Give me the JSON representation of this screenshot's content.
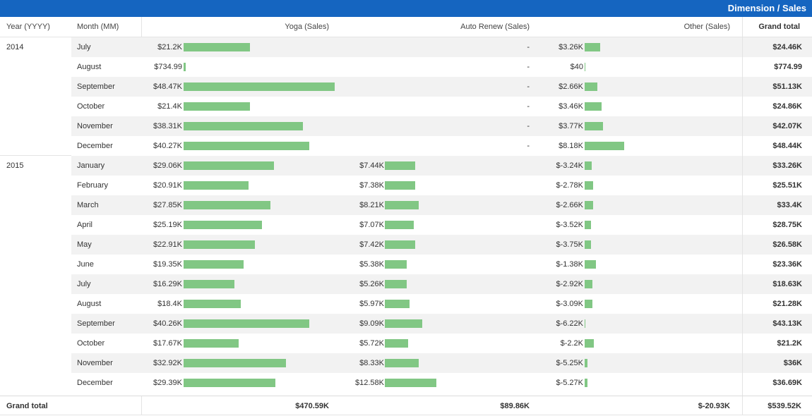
{
  "title": "Dimension / Sales",
  "columns": {
    "year": "Year (YYYY)",
    "month": "Month (MM)",
    "yoga": "Yoga (Sales)",
    "auto": "Auto Renew (Sales)",
    "other": "Other (Sales)",
    "total": "Grand total"
  },
  "rows": [
    {
      "year": "2014",
      "month": "July",
      "yoga": "$21.2K",
      "yoga_v": 21.2,
      "auto": "-",
      "auto_v": 0,
      "other": "$3.26K",
      "other_v": 3.26,
      "total": "$24.46K"
    },
    {
      "year": "",
      "month": "August",
      "yoga": "$734.99",
      "yoga_v": 0.735,
      "auto": "-",
      "auto_v": 0,
      "other": "$40",
      "other_v": 0.04,
      "total": "$774.99"
    },
    {
      "year": "",
      "month": "September",
      "yoga": "$48.47K",
      "yoga_v": 48.47,
      "auto": "-",
      "auto_v": 0,
      "other": "$2.66K",
      "other_v": 2.66,
      "total": "$51.13K"
    },
    {
      "year": "",
      "month": "October",
      "yoga": "$21.4K",
      "yoga_v": 21.4,
      "auto": "-",
      "auto_v": 0,
      "other": "$3.46K",
      "other_v": 3.46,
      "total": "$24.86K"
    },
    {
      "year": "",
      "month": "November",
      "yoga": "$38.31K",
      "yoga_v": 38.31,
      "auto": "-",
      "auto_v": 0,
      "other": "$3.77K",
      "other_v": 3.77,
      "total": "$42.07K"
    },
    {
      "year": "",
      "month": "December",
      "yoga": "$40.27K",
      "yoga_v": 40.27,
      "auto": "-",
      "auto_v": 0,
      "other": "$8.18K",
      "other_v": 8.18,
      "total": "$48.44K"
    },
    {
      "year": "2015",
      "month": "January",
      "yoga": "$29.06K",
      "yoga_v": 29.06,
      "auto": "$7.44K",
      "auto_v": 7.44,
      "other": "$-3.24K",
      "other_v": -3.24,
      "total": "$33.26K"
    },
    {
      "year": "",
      "month": "February",
      "yoga": "$20.91K",
      "yoga_v": 20.91,
      "auto": "$7.38K",
      "auto_v": 7.38,
      "other": "$-2.78K",
      "other_v": -2.78,
      "total": "$25.51K"
    },
    {
      "year": "",
      "month": "March",
      "yoga": "$27.85K",
      "yoga_v": 27.85,
      "auto": "$8.21K",
      "auto_v": 8.21,
      "other": "$-2.66K",
      "other_v": -2.66,
      "total": "$33.4K"
    },
    {
      "year": "",
      "month": "April",
      "yoga": "$25.19K",
      "yoga_v": 25.19,
      "auto": "$7.07K",
      "auto_v": 7.07,
      "other": "$-3.52K",
      "other_v": -3.52,
      "total": "$28.75K"
    },
    {
      "year": "",
      "month": "May",
      "yoga": "$22.91K",
      "yoga_v": 22.91,
      "auto": "$7.42K",
      "auto_v": 7.42,
      "other": "$-3.75K",
      "other_v": -3.75,
      "total": "$26.58K"
    },
    {
      "year": "",
      "month": "June",
      "yoga": "$19.35K",
      "yoga_v": 19.35,
      "auto": "$5.38K",
      "auto_v": 5.38,
      "other": "$-1.38K",
      "other_v": -1.38,
      "total": "$23.36K"
    },
    {
      "year": "",
      "month": "July",
      "yoga": "$16.29K",
      "yoga_v": 16.29,
      "auto": "$5.26K",
      "auto_v": 5.26,
      "other": "$-2.92K",
      "other_v": -2.92,
      "total": "$18.63K"
    },
    {
      "year": "",
      "month": "August",
      "yoga": "$18.4K",
      "yoga_v": 18.4,
      "auto": "$5.97K",
      "auto_v": 5.97,
      "other": "$-3.09K",
      "other_v": -3.09,
      "total": "$21.28K"
    },
    {
      "year": "",
      "month": "September",
      "yoga": "$40.26K",
      "yoga_v": 40.26,
      "auto": "$9.09K",
      "auto_v": 9.09,
      "other": "$-6.22K",
      "other_v": -6.22,
      "total": "$43.13K"
    },
    {
      "year": "",
      "month": "October",
      "yoga": "$17.67K",
      "yoga_v": 17.67,
      "auto": "$5.72K",
      "auto_v": 5.72,
      "other": "$-2.2K",
      "other_v": -2.2,
      "total": "$21.2K"
    },
    {
      "year": "",
      "month": "November",
      "yoga": "$32.92K",
      "yoga_v": 32.92,
      "auto": "$8.33K",
      "auto_v": 8.33,
      "other": "$-5.25K",
      "other_v": -5.25,
      "total": "$36K"
    },
    {
      "year": "",
      "month": "December",
      "yoga": "$29.39K",
      "yoga_v": 29.39,
      "auto": "$12.58K",
      "auto_v": 12.58,
      "other": "$-5.27K",
      "other_v": -5.27,
      "total": "$36.69K"
    }
  ],
  "grand_total": {
    "label": "Grand total",
    "yoga": "$470.59K",
    "auto": "$89.86K",
    "other": "$-20.93K",
    "total": "$539.52K"
  },
  "colors": {
    "header_bg": "#1565c0",
    "bar": "#81c784",
    "stripe": "#f2f2f2"
  }
}
